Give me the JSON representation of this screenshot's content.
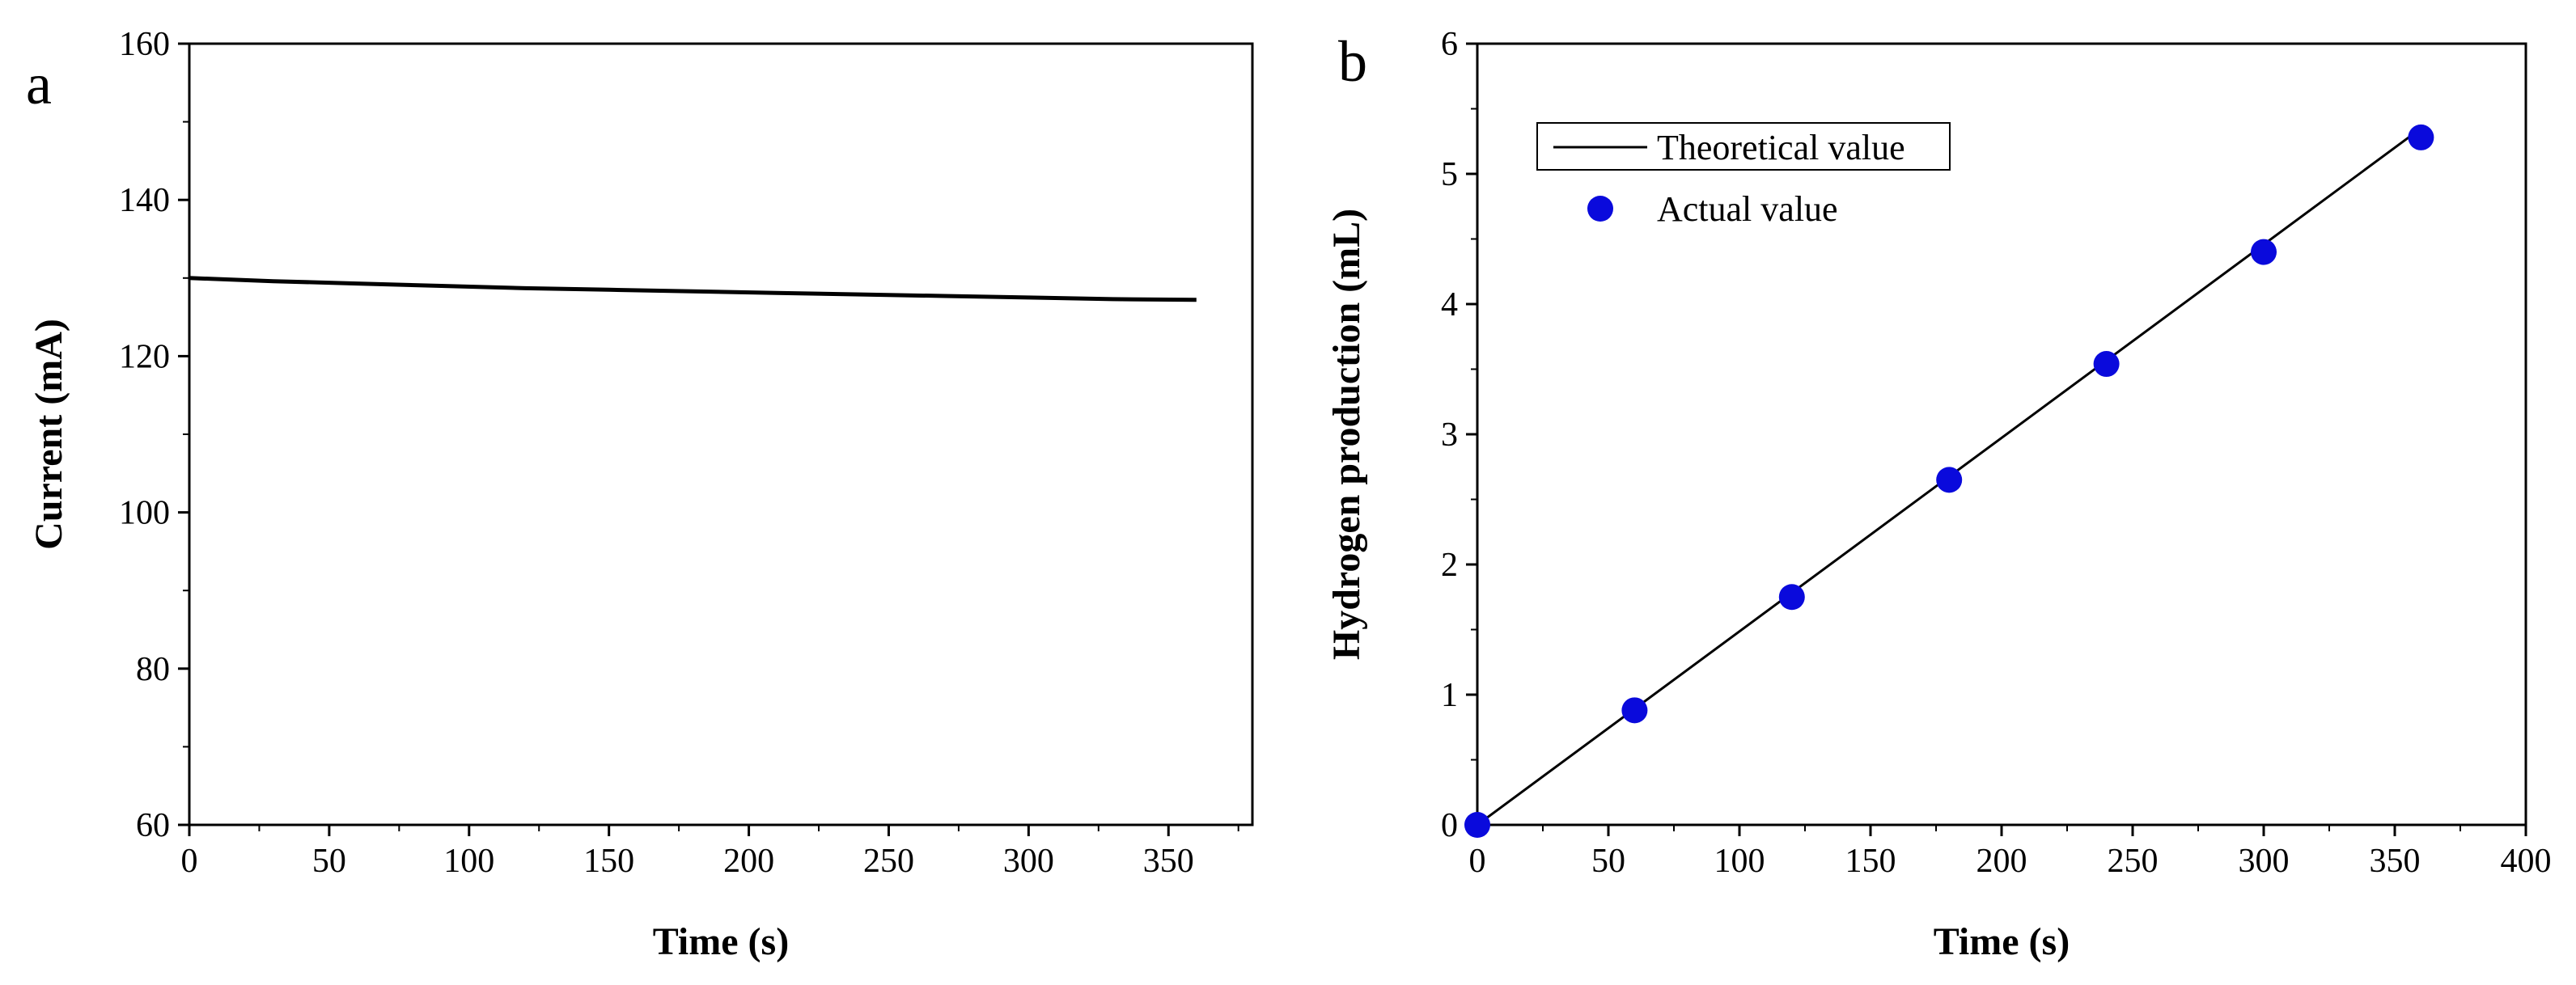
{
  "chart_data": [
    {
      "panel_label": "a",
      "type": "line",
      "title": "",
      "xlabel": "Time (s)",
      "ylabel": "Current (mA)",
      "xlim": [
        0,
        380
      ],
      "ylim": [
        60,
        160
      ],
      "xticks": [
        0,
        50,
        100,
        150,
        200,
        250,
        300,
        350
      ],
      "yticks": [
        60,
        80,
        100,
        120,
        140,
        160
      ],
      "x_tick_labels": [
        "0",
        "50",
        "100",
        "150",
        "200",
        "250",
        "300",
        "350"
      ],
      "y_tick_labels": [
        "60",
        "80",
        "100",
        "120",
        "140",
        "160"
      ],
      "grid": false,
      "series": [
        {
          "name": "Current",
          "color": "#000000",
          "x": [
            0,
            30,
            60,
            90,
            120,
            150,
            180,
            210,
            240,
            270,
            300,
            330,
            360
          ],
          "y": [
            130.0,
            129.6,
            129.3,
            129.0,
            128.7,
            128.5,
            128.3,
            128.1,
            127.9,
            127.7,
            127.5,
            127.3,
            127.2
          ]
        }
      ]
    },
    {
      "panel_label": "b",
      "type": "line+scatter",
      "title": "",
      "xlabel": "Time (s)",
      "ylabel": "Hydrogen production (mL)",
      "xlim": [
        0,
        400
      ],
      "ylim": [
        0,
        6
      ],
      "xticks": [
        0,
        50,
        100,
        150,
        200,
        250,
        300,
        350,
        400
      ],
      "yticks": [
        0,
        1,
        2,
        3,
        4,
        5,
        6
      ],
      "x_tick_labels": [
        "0",
        "50",
        "100",
        "150",
        "200",
        "250",
        "300",
        "350",
        "400"
      ],
      "y_tick_labels": [
        "0",
        "1",
        "2",
        "3",
        "4",
        "5",
        "6"
      ],
      "grid": false,
      "legend_position": "top-left",
      "series": [
        {
          "name": "Theoretical value",
          "kind": "line",
          "color": "#000000",
          "x": [
            0,
            360
          ],
          "y": [
            0,
            5.35
          ]
        },
        {
          "name": "Actual value",
          "kind": "scatter",
          "color": "#0a0adc",
          "x": [
            0,
            60,
            120,
            180,
            240,
            300,
            360
          ],
          "y": [
            0.0,
            0.88,
            1.75,
            2.65,
            3.54,
            4.4,
            5.28
          ]
        }
      ]
    }
  ]
}
